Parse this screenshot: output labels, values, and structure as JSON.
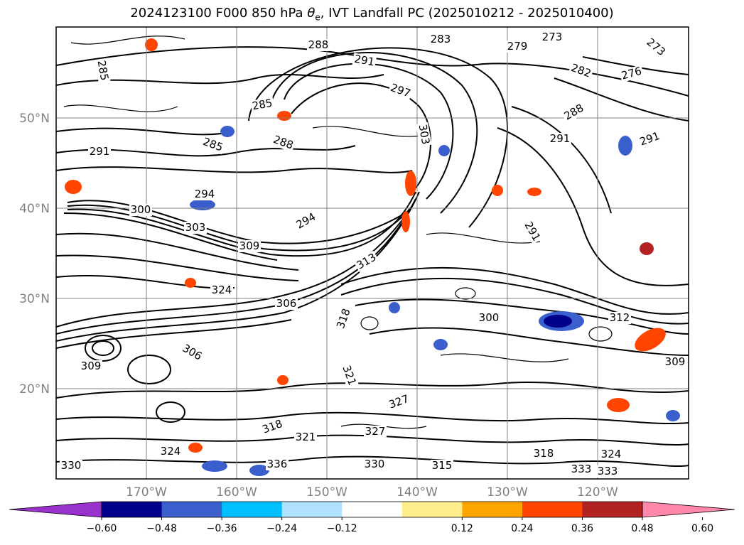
{
  "title": {
    "prefix": "2024123100 F000 850 hPa ",
    "theta": "θ",
    "sub": "e",
    "suffix": ", IVT Landfall PC (2025010212 - 2025010400)"
  },
  "map": {
    "lat_labels": [
      "50°N",
      "40°N",
      "30°N",
      "20°N"
    ],
    "lon_labels": [
      "170°W",
      "160°W",
      "150°W",
      "140°W",
      "130°W",
      "120°W"
    ],
    "contour_labels": [
      "273",
      "279",
      "273",
      "276",
      "282",
      "283",
      "285",
      "288",
      "291",
      "297",
      "303",
      "285",
      "291",
      "285",
      "288",
      "294",
      "300",
      "294",
      "303",
      "309",
      "291",
      "288",
      "291",
      "291",
      "324",
      "306",
      "313",
      "318",
      "300",
      "312",
      "309",
      "306",
      "321",
      "327",
      "324",
      "318",
      "321",
      "315",
      "324",
      "333",
      "330",
      "333",
      "318",
      "327",
      "330",
      "309",
      "336"
    ]
  },
  "colorbar": {
    "ticks": [
      "−0.60",
      "−0.48",
      "−0.36",
      "−0.24",
      "−0.12",
      "0.12",
      "0.24",
      "0.36",
      "0.48",
      "0.60"
    ],
    "colors": [
      "#9932cc",
      "#00008b",
      "#3a5fcd",
      "#00bfff",
      "#b0e2ff",
      "#ffffff",
      "#ffec8b",
      "#ffa500",
      "#ff4500",
      "#b22222",
      "#ff88aa"
    ]
  }
}
